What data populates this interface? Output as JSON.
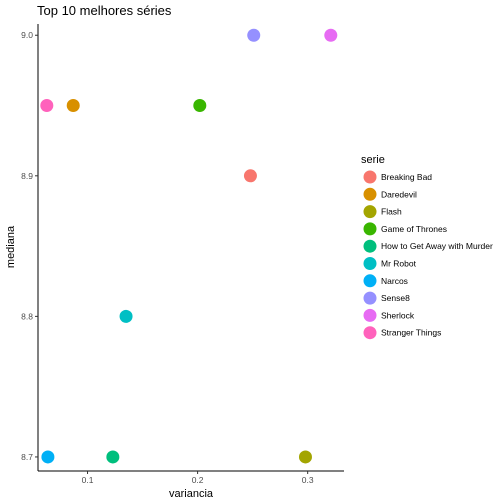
{
  "chart_data": {
    "type": "scatter",
    "title": "Top 10 melhores séries",
    "xlabel": "variancia",
    "ylabel": "mediana",
    "xlim": [
      0.055,
      0.333
    ],
    "ylim": [
      8.69,
      9.008
    ],
    "x_ticks": [
      0.1,
      0.2,
      0.3
    ],
    "x_tick_labels": [
      "0.1",
      "0.2",
      "0.3"
    ],
    "y_ticks": [
      8.7,
      8.8,
      8.9,
      9.0
    ],
    "y_tick_labels": [
      "8.7",
      "8.8",
      "8.9",
      "9.0"
    ],
    "grid": false,
    "legend": {
      "title": "serie",
      "position": "right"
    },
    "series": [
      {
        "name": "Breaking Bad",
        "color": "#F8766D",
        "x": 0.248,
        "y": 8.9
      },
      {
        "name": "Daredevil",
        "color": "#D89000",
        "x": 0.087,
        "y": 8.95
      },
      {
        "name": "Flash",
        "color": "#A3A500",
        "x": 0.298,
        "y": 8.7
      },
      {
        "name": "Game of Thrones",
        "color": "#39B600",
        "x": 0.202,
        "y": 8.95
      },
      {
        "name": "How to Get Away with Murder",
        "color": "#00BF7D",
        "x": 0.123,
        "y": 8.7
      },
      {
        "name": "Mr Robot",
        "color": "#00BFC4",
        "x": 0.135,
        "y": 8.8
      },
      {
        "name": "Narcos",
        "color": "#00B0F6",
        "x": 0.064,
        "y": 8.7
      },
      {
        "name": "Sense8",
        "color": "#9590FF",
        "x": 0.251,
        "y": 9.0
      },
      {
        "name": "Sherlock",
        "color": "#E76BF3",
        "x": 0.321,
        "y": 9.0
      },
      {
        "name": "Stranger Things",
        "color": "#FF62BC",
        "x": 0.063,
        "y": 8.95
      }
    ]
  }
}
